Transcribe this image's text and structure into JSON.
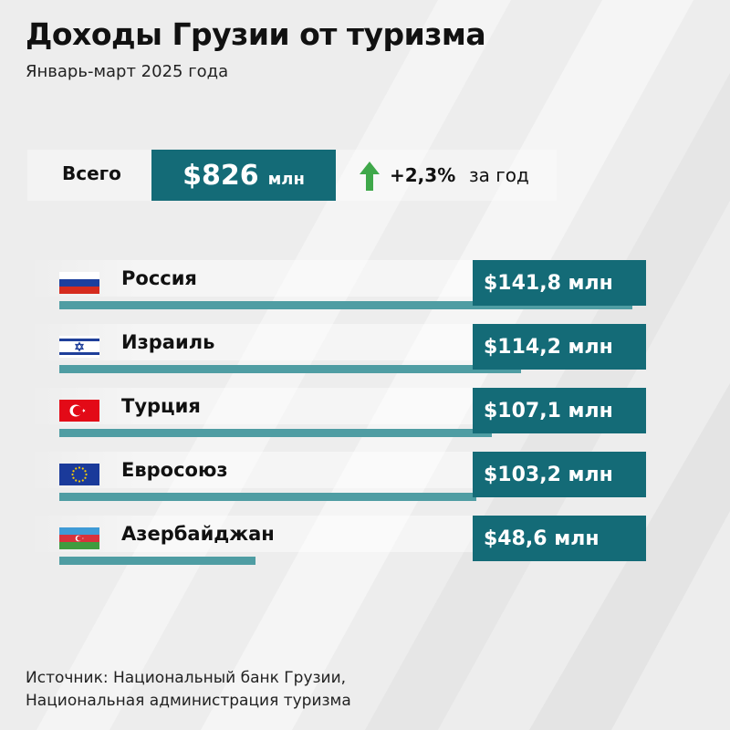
{
  "title": "Доходы Грузии от туризма",
  "subtitle": "Январь-март 2025 года",
  "total": {
    "label": "Всего",
    "value": "$826",
    "unit": "млн",
    "change": "+2,3%",
    "change_suffix": "за год",
    "change_direction": "up"
  },
  "colors": {
    "background": "#ededed",
    "accent_dark": "#146b77",
    "bar": "#4f9da3",
    "arrow": "#3fa84a"
  },
  "chart_data": {
    "type": "bar",
    "orientation": "horizontal",
    "categories": [
      "Россия",
      "Израиль",
      "Турция",
      "Евросоюз",
      "Азербайджан"
    ],
    "values": [
      141.8,
      114.2,
      107.1,
      103.2,
      48.6
    ],
    "labels": [
      "$141,8 млн",
      "$114,2 млн",
      "$107,1 млн",
      "$103,2 млн",
      "$48,6 млн"
    ],
    "flags": [
      "russia-flag-icon",
      "israel-flag-icon",
      "turkey-flag-icon",
      "eu-flag-icon",
      "azerbaijan-flag-icon"
    ],
    "unit": "млн долларов США"
  },
  "source": {
    "line1": "Источник: Национальный банк Грузии,",
    "line2": "Национальная администрация туризма"
  }
}
